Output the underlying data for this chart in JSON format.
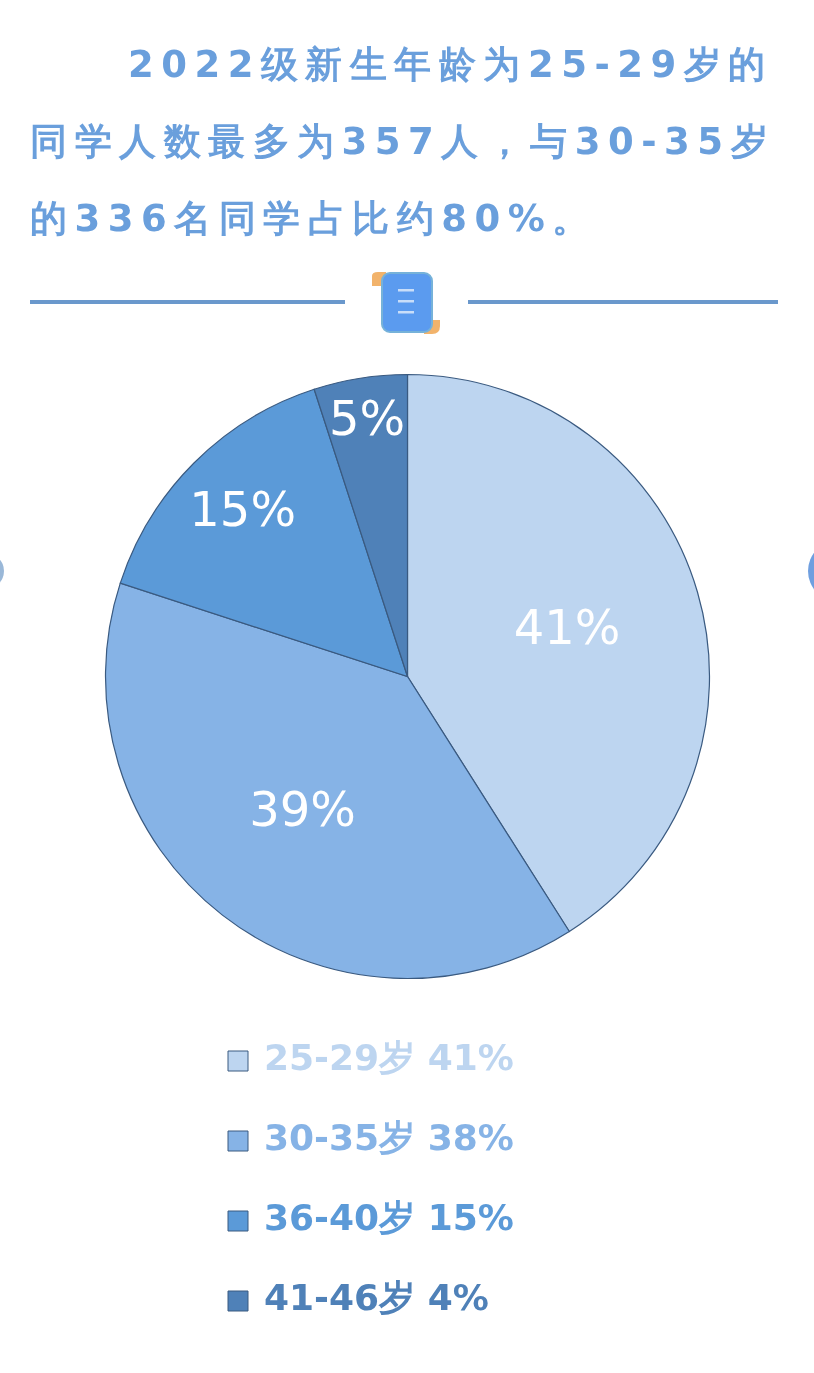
{
  "chart_data": {
    "type": "pie",
    "title": "2022级新生年龄为25-29岁的同学人数最多为357人，与30-35岁的336名同学占比约80%。",
    "categories": [
      "25-29岁 41%",
      "30-35岁 38%",
      "36-40岁 15%",
      "41-46岁 4%"
    ],
    "values": [
      41,
      39,
      15,
      5
    ],
    "value_labels": [
      "41%",
      "39%",
      "15%",
      "5%"
    ],
    "colors": [
      "#bdd5f0",
      "#86b3e6",
      "#5b9ad8",
      "#4f81b8"
    ],
    "legend": "bottom"
  }
}
